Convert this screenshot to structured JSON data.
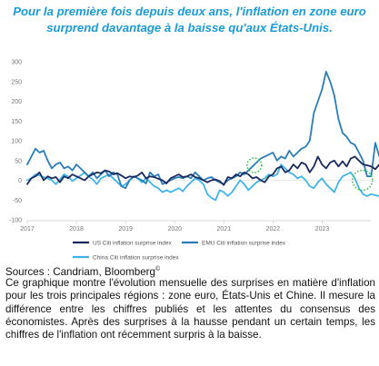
{
  "title": "Pour la première fois depuis deux ans, l'inflation en zone euro surprend davantage à la baisse qu'aux États-Unis.",
  "sources": {
    "text": "Sources : Candriam, Bloomberg",
    "mark": "©"
  },
  "description": "Ce graphique montre l'évolution mensuelle des surprises en matière d'inflation pour les trois principales régions : zone euro, États-Unis et Chine. Il mesure la différence entre les chiffres publiés et les attentes du consensus des économistes. Après des surprises à la hausse pendant un certain temps, les chiffres de l'inflation ont récemment surpris à la baisse.",
  "chart_data": {
    "type": "line",
    "title": "",
    "xlabel": "",
    "ylabel": "",
    "xlim": [
      2017,
      2023.99
    ],
    "ylim": [
      -100,
      300
    ],
    "x_ticks": [
      "2017",
      "2018",
      "2019",
      "2020",
      "2021",
      "2022",
      "2023"
    ],
    "y_ticks": [
      300,
      250,
      200,
      150,
      100,
      50,
      0,
      -50,
      -100
    ],
    "grid": false,
    "legend_position": "bottom",
    "x_step_years": 0.0833,
    "series": [
      {
        "name": "US Citi inflation surprise index",
        "color": "#1b2a5c",
        "values": [
          -10,
          5,
          10,
          20,
          0,
          10,
          5,
          8,
          -5,
          10,
          5,
          15,
          10,
          5,
          0,
          10,
          15,
          20,
          18,
          25,
          22,
          15,
          18,
          12,
          5,
          10,
          8,
          12,
          20,
          5,
          10,
          8,
          4,
          0,
          -8,
          5,
          10,
          15,
          8,
          10,
          15,
          8,
          5,
          0,
          -5,
          0,
          2,
          -2,
          -12,
          8,
          5,
          15,
          10,
          20,
          15,
          5,
          8,
          0,
          -5,
          10,
          15,
          30,
          35,
          20,
          25,
          40,
          30,
          45,
          40,
          20,
          35,
          60,
          40,
          30,
          45,
          50,
          35,
          48,
          35,
          55,
          60,
          50,
          40,
          38,
          35,
          28,
          40,
          5,
          18,
          30,
          5,
          -10,
          -5,
          -8,
          -12,
          -15
        ]
      },
      {
        "name": "EMU Citi inflation surprise index",
        "color": "#2a7db7",
        "values": [
          40,
          60,
          80,
          70,
          75,
          50,
          30,
          40,
          45,
          30,
          35,
          25,
          40,
          30,
          20,
          10,
          20,
          5,
          15,
          25,
          10,
          20,
          15,
          -15,
          -20,
          0,
          10,
          5,
          0,
          -8,
          20,
          10,
          15,
          -10,
          -5,
          0,
          5,
          8,
          5,
          10,
          5,
          20,
          10,
          0,
          5,
          8,
          0,
          -5,
          -10,
          0,
          5,
          10,
          20,
          15,
          25,
          35,
          45,
          55,
          60,
          65,
          70,
          50,
          60,
          55,
          75,
          60,
          70,
          80,
          85,
          100,
          170,
          200,
          230,
          275,
          250,
          215,
          155,
          120,
          110,
          95,
          90,
          70,
          50,
          10,
          10,
          95,
          60,
          35,
          25,
          20,
          10,
          0,
          -5,
          10,
          0,
          8
        ]
      },
      {
        "name": "China Citi inflation surprise index",
        "color": "#3fb4e6",
        "values": [
          0,
          5,
          15,
          12,
          8,
          5,
          0,
          -10,
          2,
          15,
          10,
          -2,
          5,
          12,
          20,
          10,
          2,
          -10,
          5,
          10,
          15,
          5,
          -5,
          -15,
          -10,
          0,
          10,
          5,
          -5,
          5,
          -5,
          -15,
          -20,
          -30,
          -25,
          -30,
          -25,
          -20,
          -28,
          -15,
          -5,
          5,
          0,
          -10,
          -35,
          -45,
          -50,
          -25,
          -30,
          -40,
          -30,
          -15,
          0,
          -10,
          -25,
          -15,
          -5,
          0,
          5,
          15,
          10,
          15,
          40,
          30,
          20,
          15,
          5,
          10,
          0,
          -15,
          -20,
          -5,
          5,
          -10,
          -20,
          -30,
          -5,
          10,
          15,
          20,
          5,
          -20,
          -35,
          -40,
          -35,
          -38,
          -40,
          -40,
          -65,
          -68,
          -68,
          -70,
          -72,
          -75,
          -60,
          -62
        ]
      }
    ]
  }
}
